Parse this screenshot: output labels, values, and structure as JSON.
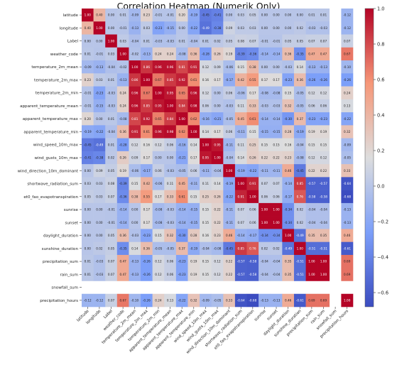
{
  "chart_data": {
    "type": "heatmap",
    "title": "Correlation Heatmap (Numerik Only)",
    "variables": [
      "latitude",
      "longitude",
      "Label",
      "weather_code",
      "temperature_2m_mean",
      "temperature_2m_max",
      "temperature_2m_min",
      "apparent_temperature_mean",
      "apparent_temperature_max",
      "apparent_temperature_min",
      "wind_speed_10m_max",
      "wind_gusts_10m_max",
      "wind_direction_10m_dominant",
      "shortwave_radiation_sum",
      "et0_fao_evapotranspiration",
      "sunrise",
      "sunset",
      "daylight_duration",
      "sunshine_duration",
      "precipitation_sum",
      "rain_sum",
      "snowfall_sum",
      "precipitation_hours"
    ],
    "matrix": [
      [
        1.0,
        0.4,
        0.0,
        0.01,
        -0.09,
        0.23,
        -0.01,
        -0.01,
        0.2,
        -0.19,
        -0.45,
        -0.41,
        0.0,
        0.03,
        0.05,
        0.0,
        0.0,
        0.0,
        0.0,
        0.01,
        0.01,
        null,
        -0.12
      ],
      [
        0.4,
        1.0,
        0.0,
        -0.01,
        -0.13,
        0.03,
        -0.23,
        -0.15,
        0.0,
        -0.22,
        -0.49,
        -0.38,
        0.09,
        0.03,
        0.03,
        0.0,
        0.0,
        0.0,
        0.02,
        -0.03,
        -0.03,
        null,
        -0.12
      ],
      [
        0.0,
        0.0,
        1.0,
        0.03,
        -0.04,
        0.01,
        -0.03,
        -0.03,
        0.01,
        -0.04,
        0.01,
        0.02,
        0.05,
        0.08,
        0.07,
        -0.01,
        -0.01,
        0.05,
        0.05,
        0.07,
        0.07,
        null,
        0.07
      ],
      [
        0.01,
        -0.01,
        0.03,
        1.0,
        -0.02,
        -0.13,
        0.24,
        0.24,
        -0.08,
        0.36,
        -0.28,
        0.26,
        0.19,
        -0.39,
        -0.36,
        -0.14,
        -0.14,
        0.36,
        -0.35,
        0.47,
        0.47,
        null,
        0.67
      ],
      [
        -0.09,
        -0.13,
        -0.04,
        -0.02,
        1.0,
        0.86,
        0.96,
        0.96,
        0.81,
        0.91,
        0.12,
        0.09,
        -0.06,
        0.15,
        0.38,
        0.0,
        0.0,
        -0.03,
        0.14,
        -0.13,
        -0.13,
        null,
        -0.1
      ],
      [
        0.23,
        0.03,
        0.01,
        -0.13,
        0.86,
        1.0,
        0.67,
        0.85,
        0.92,
        0.61,
        0.16,
        0.17,
        -0.17,
        0.42,
        0.55,
        0.17,
        0.17,
        -0.23,
        0.36,
        -0.26,
        -0.26,
        null,
        -0.26
      ],
      [
        -0.01,
        -0.23,
        -0.03,
        0.24,
        0.96,
        0.67,
        1.0,
        0.95,
        0.65,
        0.96,
        0.12,
        0.0,
        0.06,
        -0.06,
        0.17,
        -0.08,
        -0.08,
        0.15,
        -0.05,
        0.12,
        0.12,
        null,
        0.24
      ],
      [
        -0.01,
        -0.15,
        -0.03,
        0.24,
        0.96,
        0.85,
        0.95,
        1.0,
        0.84,
        0.98,
        0.06,
        0.0,
        -0.03,
        0.11,
        0.33,
        -0.03,
        -0.03,
        0.32,
        -0.05,
        0.06,
        0.06,
        null,
        0.13
      ],
      [
        0.2,
        0.0,
        0.01,
        -0.08,
        0.81,
        0.92,
        0.65,
        0.84,
        1.0,
        0.62,
        -0.16,
        -0.21,
        -0.05,
        0.45,
        0.61,
        -0.14,
        -0.14,
        -0.3,
        0.37,
        -0.23,
        -0.23,
        null,
        -0.22
      ],
      [
        -0.19,
        -0.22,
        -0.04,
        0.36,
        0.91,
        0.61,
        0.96,
        0.98,
        0.62,
        1.0,
        0.14,
        0.17,
        0.06,
        -0.11,
        0.15,
        -0.15,
        -0.15,
        0.28,
        -0.19,
        0.19,
        0.19,
        null,
        0.32
      ],
      [
        -0.45,
        -0.49,
        0.01,
        -0.28,
        0.12,
        0.16,
        0.12,
        0.06,
        -0.16,
        0.14,
        1.0,
        0.95,
        -0.11,
        0.11,
        0.25,
        0.15,
        0.15,
        0.16,
        -0.04,
        0.15,
        0.15,
        null,
        -0.09
      ],
      [
        -0.41,
        -0.38,
        0.02,
        0.26,
        0.09,
        0.17,
        0.0,
        0.0,
        -0.21,
        0.17,
        0.95,
        1.0,
        -0.04,
        0.14,
        0.26,
        0.22,
        0.22,
        0.23,
        -0.08,
        0.12,
        0.12,
        null,
        -0.05
      ],
      [
        0.0,
        0.09,
        0.05,
        0.19,
        -0.06,
        -0.17,
        0.06,
        -0.03,
        -0.05,
        0.06,
        -0.11,
        -0.04,
        1.0,
        -0.19,
        -0.22,
        -0.11,
        -0.11,
        0.46,
        -0.45,
        0.22,
        0.22,
        null,
        0.33
      ],
      [
        0.03,
        0.03,
        0.08,
        -0.39,
        0.15,
        0.42,
        -0.06,
        0.11,
        0.45,
        -0.11,
        0.11,
        0.14,
        -0.19,
        1.0,
        0.91,
        0.07,
        0.07,
        -0.14,
        0.85,
        -0.57,
        -0.57,
        null,
        -0.64
      ],
      [
        0.05,
        0.03,
        0.07,
        -0.36,
        0.38,
        0.55,
        0.17,
        0.33,
        0.61,
        0.15,
        0.25,
        0.26,
        -0.22,
        0.91,
        1.0,
        0.06,
        0.06,
        -0.17,
        0.76,
        -0.58,
        -0.58,
        null,
        -0.68
      ],
      [
        0.0,
        0.0,
        -0.01,
        -0.14,
        0.0,
        0.17,
        -0.08,
        -0.03,
        -0.14,
        -0.15,
        0.15,
        0.22,
        -0.11,
        0.07,
        0.06,
        1.0,
        1.0,
        -0.34,
        0.02,
        -0.04,
        -0.04,
        null,
        -0.13
      ],
      [
        0.0,
        0.0,
        -0.01,
        -0.14,
        0.0,
        0.17,
        -0.08,
        -0.03,
        -0.14,
        -0.15,
        0.15,
        0.22,
        -0.11,
        0.07,
        0.06,
        1.0,
        1.0,
        -0.34,
        0.02,
        -0.04,
        -0.04,
        null,
        -0.13
      ],
      [
        0.0,
        0.0,
        0.05,
        0.36,
        -0.03,
        -0.23,
        0.15,
        0.32,
        -0.3,
        0.28,
        0.16,
        0.23,
        0.46,
        -0.14,
        -0.17,
        -0.34,
        -0.34,
        1.0,
        -0.49,
        0.35,
        0.35,
        null,
        0.46
      ],
      [
        0.0,
        0.02,
        0.05,
        -0.35,
        0.14,
        0.36,
        -0.05,
        -0.05,
        0.37,
        -0.19,
        -0.04,
        -0.08,
        -0.45,
        0.85,
        0.76,
        0.02,
        0.02,
        -0.49,
        1.0,
        -0.51,
        -0.51,
        null,
        -0.61
      ],
      [
        0.01,
        -0.03,
        0.07,
        0.47,
        -0.13,
        -0.26,
        0.12,
        0.06,
        -0.23,
        0.19,
        0.15,
        0.12,
        0.22,
        -0.57,
        -0.58,
        -0.04,
        -0.04,
        0.35,
        -0.51,
        1.0,
        1.0,
        null,
        0.69
      ],
      [
        0.01,
        -0.03,
        0.07,
        0.47,
        -0.13,
        -0.26,
        0.12,
        0.06,
        -0.23,
        0.19,
        0.15,
        0.12,
        0.22,
        -0.57,
        -0.58,
        -0.04,
        -0.04,
        0.35,
        -0.51,
        1.0,
        1.0,
        null,
        0.69
      ],
      [
        null,
        null,
        null,
        null,
        null,
        null,
        null,
        null,
        null,
        null,
        null,
        null,
        null,
        null,
        null,
        null,
        null,
        null,
        null,
        null,
        null,
        null,
        null
      ],
      [
        -0.12,
        -0.12,
        0.07,
        0.67,
        -0.1,
        -0.26,
        0.24,
        0.13,
        -0.22,
        0.32,
        -0.09,
        -0.05,
        0.33,
        -0.64,
        -0.68,
        -0.13,
        -0.13,
        0.46,
        -0.61,
        0.69,
        0.69,
        null,
        1.0
      ]
    ],
    "value_format": "0.00",
    "colorbar": {
      "colormap": "coolwarm",
      "vmin": -0.68,
      "vmax": 1.0,
      "ticks": [
        -0.6,
        -0.4,
        -0.2,
        0.0,
        0.2,
        0.4,
        0.6,
        0.8,
        1.0
      ],
      "tick_labels": [
        "−0.6",
        "−0.4",
        "−0.2",
        "0.0",
        "0.2",
        "0.4",
        "0.6",
        "0.8",
        "1.0"
      ],
      "position": "right"
    }
  }
}
